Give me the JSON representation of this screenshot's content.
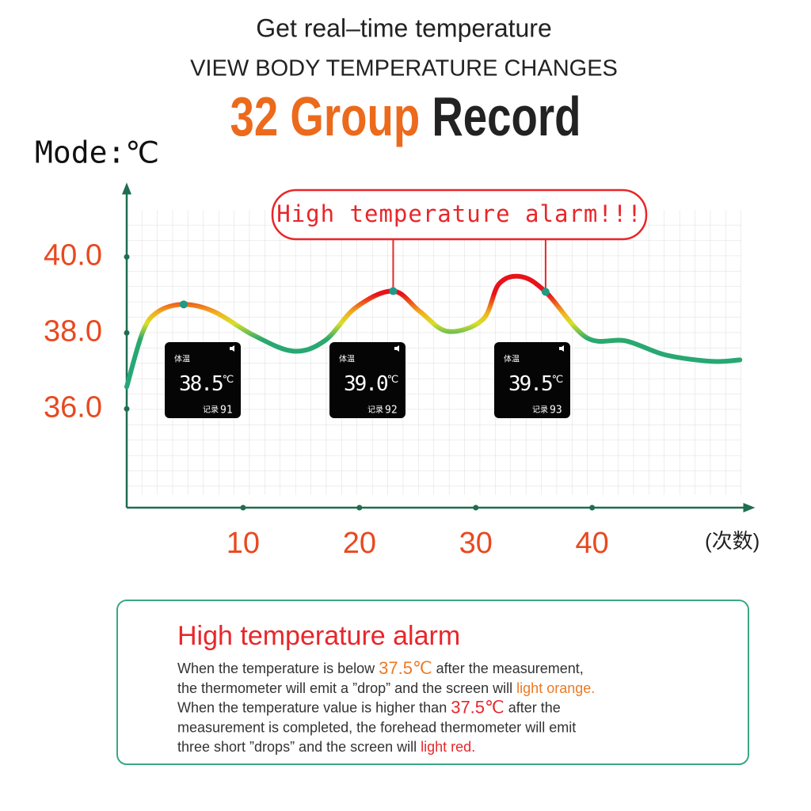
{
  "header": {
    "line1": "Get real–time temperature",
    "line2": "VIEW BODY TEMPERATURE CHANGES",
    "title_a": "32 Group",
    "title_b": "Record"
  },
  "chart_data": {
    "type": "line",
    "mode_label": "Mode:℃",
    "x_label": "(次数)",
    "annotation": "High temperature alarm!!!",
    "xlim": [
      0,
      53.5
    ],
    "xticks": [
      10,
      20,
      30,
      40
    ],
    "ylim": [
      33.4,
      41.8
    ],
    "yticks": [
      {
        "value": 40,
        "label": "40.0"
      },
      {
        "value": 38,
        "label": "38.0"
      },
      {
        "value": 36,
        "label": "36.0"
      }
    ],
    "grid": true,
    "x": [
      0,
      1.4,
      2.7,
      4.9,
      7.5,
      10.9,
      14.3,
      17.0,
      19.7,
      22.9,
      25.2,
      27.6,
      30.6,
      32.0,
      33.9,
      36.0,
      39.5,
      42.9,
      46.3,
      50.3,
      52.7
    ],
    "values": [
      36.58,
      38.04,
      38.56,
      38.75,
      38.56,
      37.94,
      37.52,
      37.79,
      38.67,
      39.1,
      38.56,
      38.04,
      38.35,
      39.29,
      39.48,
      39.08,
      37.88,
      37.79,
      37.42,
      37.25,
      37.29
    ],
    "displays": [
      {
        "label": "体温",
        "reading": "38.5",
        "unit": "℃",
        "record_label": "记录",
        "record": "91"
      },
      {
        "label": "体温",
        "reading": "39.0",
        "unit": "℃",
        "record_label": "记录",
        "record": "92"
      },
      {
        "label": "体温",
        "reading": "39.5",
        "unit": "℃",
        "record_label": "记录",
        "record": "93"
      }
    ]
  },
  "alarm": {
    "title": "High temperature alarm",
    "lines": [
      [
        {
          "text": "When the temperature is below "
        },
        {
          "text": "37.5℃",
          "color": "#ec7a24"
        },
        {
          "text": " after the measurement,"
        }
      ],
      [
        {
          "text": "the thermometer will emit a ”drop” and the screen will "
        },
        {
          "text": "light orange.",
          "color": "#ec7a24"
        }
      ],
      [
        {
          "text": "When the temperature value is higher than "
        },
        {
          "text": "37.5℃",
          "color": "#e8262a"
        },
        {
          "text": " after the"
        }
      ],
      [
        {
          "text": "measurement is completed, the forehead thermometer will emit"
        }
      ],
      [
        {
          "text": "three short ”drops” and the screen will "
        },
        {
          "text": "light red.",
          "color": "#e8262a"
        }
      ]
    ]
  }
}
